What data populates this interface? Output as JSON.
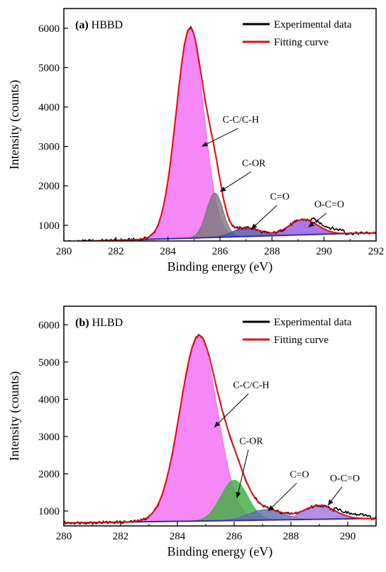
{
  "chart_data": [
    {
      "type": "area",
      "panel_letter": "(a)",
      "panel_name": "HBBD",
      "xlabel": "Binding energy (eV)",
      "ylabel": "Intensity (counts)",
      "xlim": [
        280,
        292
      ],
      "ylim": [
        600,
        6500
      ],
      "xticks": [
        "280",
        "282",
        "284",
        "286",
        "288",
        "290",
        "292"
      ],
      "yticks": [
        "1000",
        "2000",
        "3000",
        "4000",
        "5000",
        "6000"
      ],
      "legend": [
        {
          "label": "Experimental data",
          "color": "#000000"
        },
        {
          "label": "Fitting curve",
          "color": "#e01010"
        }
      ],
      "legend_position": "top-right",
      "baseline": {
        "x": [
          280,
          292
        ],
        "y": [
          580,
          810
        ]
      },
      "peaks": [
        {
          "name": "C-C/C-H",
          "center": 284.85,
          "height": 5320,
          "fwhm": 1.25,
          "color": "#f46cf4"
        },
        {
          "name": "C-OR",
          "center": 285.8,
          "height": 1130,
          "fwhm": 0.75,
          "color": "#7a7a7a"
        },
        {
          "name": "C=O",
          "center": 287.0,
          "height": 220,
          "fwhm": 1.2,
          "color": "#5050b0"
        },
        {
          "name": "O-C=O",
          "center": 289.2,
          "height": 390,
          "fwhm": 1.3,
          "color": "#9a58e0"
        }
      ],
      "annotations": [
        {
          "text": "C-C/C-H",
          "label_x": 286.8,
          "label_y": 3600,
          "arrow_to": [
            285.3,
            3000
          ]
        },
        {
          "text": "C-OR",
          "label_x": 287.3,
          "label_y": 2500,
          "arrow_to": [
            286.0,
            1850
          ]
        },
        {
          "text": "C=O",
          "label_x": 288.3,
          "label_y": 1650,
          "arrow_to": [
            287.2,
            900
          ]
        },
        {
          "text": "O-C=O",
          "label_x": 290.2,
          "label_y": 1450,
          "arrow_to": [
            289.4,
            950
          ]
        }
      ]
    },
    {
      "type": "area",
      "panel_letter": "(b)",
      "panel_name": "HLBD",
      "xlabel": "Binding energy (eV)",
      "ylabel": "Intensity (counts)",
      "xlim": [
        280,
        291
      ],
      "ylim": [
        600,
        6500
      ],
      "xticks": [
        "280",
        "282",
        "284",
        "286",
        "288",
        "290"
      ],
      "yticks": [
        "1000",
        "2000",
        "3000",
        "4000",
        "5000",
        "6000"
      ],
      "legend": [
        {
          "label": "Experimental data",
          "color": "#000000"
        },
        {
          "label": "Fitting curve",
          "color": "#e01010"
        }
      ],
      "legend_position": "top-right",
      "baseline": {
        "x": [
          280,
          291
        ],
        "y": [
          680,
          800
        ]
      },
      "peaks": [
        {
          "name": "C-C/C-H",
          "center": 284.75,
          "height": 4950,
          "fwhm": 1.55,
          "color": "#f46cf4"
        },
        {
          "name": "C-OR",
          "center": 286.0,
          "height": 1080,
          "fwhm": 1.1,
          "color": "#3fb03f"
        },
        {
          "name": "C=O",
          "center": 287.1,
          "height": 280,
          "fwhm": 1.4,
          "color": "#6070b0"
        },
        {
          "name": "O-C=O",
          "center": 289.0,
          "height": 370,
          "fwhm": 1.3,
          "color": "#a078e0"
        }
      ],
      "annotations": [
        {
          "text": "C-C/C-H",
          "label_x": 286.6,
          "label_y": 4300,
          "arrow_to": [
            285.3,
            3250
          ]
        },
        {
          "text": "C-OR",
          "label_x": 286.6,
          "label_y": 2800,
          "arrow_to": [
            286.1,
            1350
          ]
        },
        {
          "text": "C=O",
          "label_x": 288.3,
          "label_y": 1900,
          "arrow_to": [
            287.2,
            1000
          ]
        },
        {
          "text": "O-C=O",
          "label_x": 289.9,
          "label_y": 1800,
          "arrow_to": [
            289.3,
            1150
          ]
        }
      ]
    }
  ]
}
